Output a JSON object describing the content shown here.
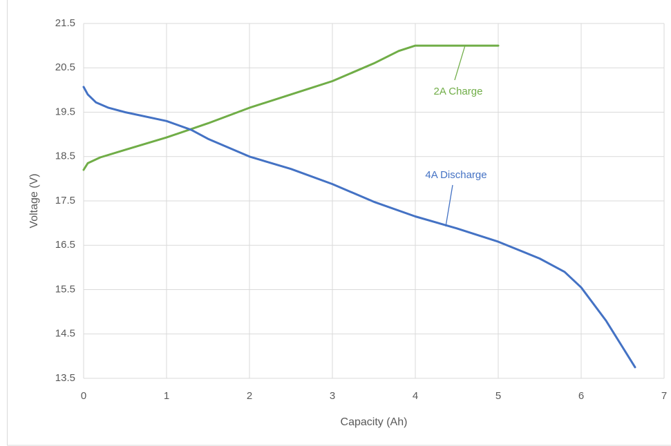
{
  "chart_data": {
    "type": "line",
    "x_label": "Capacity (Ah)",
    "y_label": "Voltage (V)",
    "xlim": [
      0,
      7
    ],
    "xticks": [
      0,
      1,
      2,
      3,
      4,
      5,
      6,
      7
    ],
    "ylim": [
      13.5,
      21.5
    ],
    "yticks": [
      13.5,
      14.5,
      15.5,
      16.5,
      17.5,
      18.5,
      19.5,
      20.5,
      21.5
    ],
    "grid": true,
    "series": [
      {
        "name": "2A Charge",
        "color": "#70ad47",
        "x": [
          0,
          0.05,
          0.2,
          0.5,
          1.0,
          1.5,
          2.0,
          2.5,
          3.0,
          3.5,
          3.8,
          4.0,
          4.5,
          5.0
        ],
        "values": [
          18.2,
          18.35,
          18.48,
          18.65,
          18.93,
          19.25,
          19.6,
          19.9,
          20.2,
          20.6,
          20.88,
          21.0,
          21.0,
          21.0
        ]
      },
      {
        "name": "4A Discharge",
        "color": "#4472c4",
        "x": [
          0,
          0.05,
          0.15,
          0.3,
          0.5,
          1.0,
          1.3,
          1.5,
          2.0,
          2.5,
          3.0,
          3.5,
          4.0,
          4.5,
          5.0,
          5.5,
          5.8,
          6.0,
          6.3,
          6.5,
          6.65
        ],
        "values": [
          20.07,
          19.9,
          19.72,
          19.6,
          19.5,
          19.3,
          19.1,
          18.9,
          18.5,
          18.22,
          17.88,
          17.48,
          17.15,
          16.88,
          16.58,
          16.2,
          15.9,
          15.55,
          14.8,
          14.2,
          13.75
        ]
      }
    ]
  }
}
